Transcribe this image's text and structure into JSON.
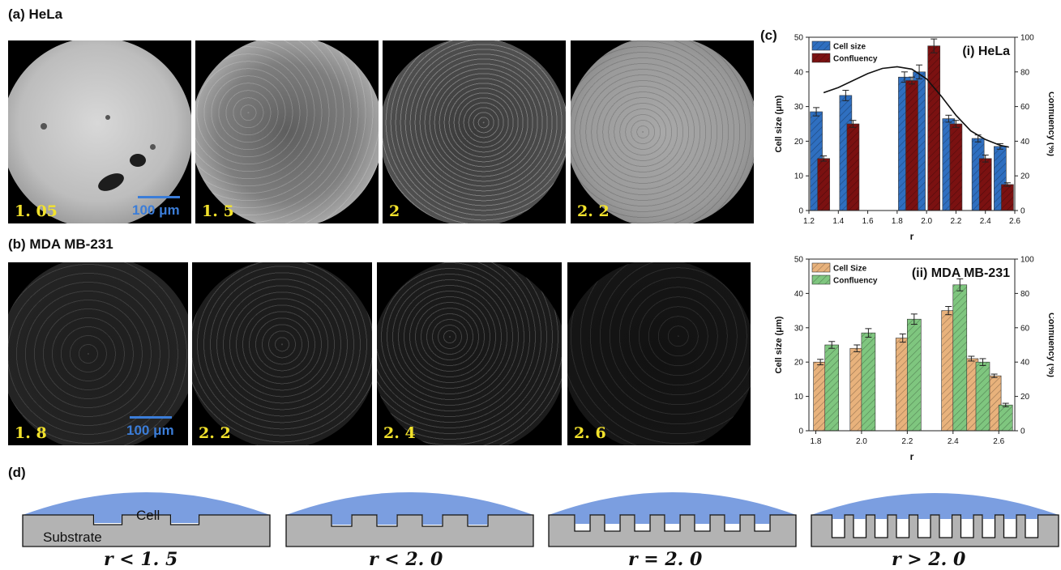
{
  "panel_a": {
    "label": "(a) HeLa",
    "images": [
      {
        "caption": "1. 05",
        "scale_text": "100 μm"
      },
      {
        "caption": "1. 5"
      },
      {
        "caption": "2"
      },
      {
        "caption": "2. 2"
      }
    ]
  },
  "panel_b": {
    "label": "(b) MDA MB-231",
    "images": [
      {
        "caption": "1. 8",
        "scale_text": "100 μm"
      },
      {
        "caption": "2. 2"
      },
      {
        "caption": "2. 4"
      },
      {
        "caption": "2. 6"
      }
    ]
  },
  "panel_c": {
    "label": "(c)"
  },
  "panel_d": {
    "label": "(d)",
    "cell_label": "Cell",
    "substrate_label": "Substrate",
    "conditions": [
      "r < 1. 5",
      "r < 2. 0",
      "r = 2. 0",
      "r > 2. 0"
    ]
  },
  "colors": {
    "hela_cell_size": "#2f6fc0",
    "hela_confluency": "#7b1111",
    "mda_cell_size": "#e8b27c",
    "mda_confluency": "#7fc67f",
    "cell_fill": "#7b9ee0",
    "substrate_fill": "#b3b3b3",
    "caption_yellow": "#f2e22c",
    "scale_blue": "#3b7dd8"
  },
  "chart_data": [
    {
      "type": "bar",
      "title": "(i) HeLa",
      "xlabel": "r",
      "ylabel": "Cell size (μm)",
      "y2label": "Confluency (%)",
      "xlim": [
        1.2,
        2.6
      ],
      "ylim": [
        0,
        50
      ],
      "y2lim": [
        0,
        100
      ],
      "x_ticks": [
        "1.2",
        "1.4",
        "1.6",
        "1.8",
        "2.0",
        "2.2",
        "2.4",
        "2.6"
      ],
      "y_ticks": [
        "0",
        "10",
        "20",
        "30",
        "40",
        "50"
      ],
      "y2_ticks": [
        "0",
        "20",
        "40",
        "60",
        "80",
        "100"
      ],
      "legend_position": "top-left",
      "series": [
        {
          "name": "Cell size",
          "axis": "left",
          "x": [
            1.25,
            1.45,
            1.85,
            1.95,
            2.15,
            2.35,
            2.5
          ],
          "values": [
            28.5,
            33.2,
            38.5,
            40.0,
            26.5,
            20.8,
            18.5
          ],
          "errors": [
            1.2,
            1.5,
            1.5,
            2.0,
            1.0,
            1.0,
            0.8
          ]
        },
        {
          "name": "Confluency",
          "axis": "right",
          "x": [
            1.3,
            1.5,
            1.9,
            2.05,
            2.2,
            2.4,
            2.55
          ],
          "values": [
            30,
            50,
            75,
            95,
            50,
            30,
            15
          ],
          "errors": [
            1.5,
            2.0,
            2.0,
            4.0,
            2.0,
            2.0,
            1.0
          ]
        }
      ],
      "fit_curve": {
        "x": [
          1.3,
          1.4,
          1.5,
          1.6,
          1.7,
          1.8,
          1.9,
          2.0,
          2.1,
          2.2,
          2.3,
          2.4,
          2.5,
          2.56
        ],
        "values": [
          34.0,
          35.5,
          37.5,
          39.5,
          41.0,
          41.5,
          40.8,
          38.0,
          33.0,
          27.5,
          23.0,
          20.5,
          18.8,
          18.3
        ]
      }
    },
    {
      "type": "bar",
      "title": "(ii) MDA MB-231",
      "xlabel": "r",
      "ylabel": "Cell size (μm)",
      "y2label": "Confluency (%)",
      "xlim": [
        1.77,
        2.67
      ],
      "ylim": [
        0,
        50
      ],
      "y2lim": [
        0,
        100
      ],
      "x_ticks": [
        "1.8",
        "2.0",
        "2.2",
        "2.4",
        "2.6"
      ],
      "y_ticks": [
        "0",
        "10",
        "20",
        "30",
        "40",
        "50"
      ],
      "y2_ticks": [
        "0",
        "20",
        "40",
        "60",
        "80",
        "100"
      ],
      "legend_position": "top-left",
      "series": [
        {
          "name": "Cell Size",
          "axis": "left",
          "x": [
            1.82,
            1.98,
            2.18,
            2.38,
            2.48,
            2.58
          ],
          "values": [
            20,
            24,
            27,
            35,
            21,
            16
          ],
          "errors": [
            0.8,
            1.0,
            1.2,
            1.2,
            0.7,
            0.5
          ]
        },
        {
          "name": "Confluency",
          "axis": "right",
          "x": [
            1.87,
            2.03,
            2.23,
            2.43,
            2.53,
            2.63
          ],
          "values": [
            50,
            57,
            65,
            85,
            40,
            15
          ],
          "errors": [
            2.0,
            2.5,
            3.0,
            3.5,
            2.0,
            1.0
          ]
        }
      ]
    }
  ]
}
